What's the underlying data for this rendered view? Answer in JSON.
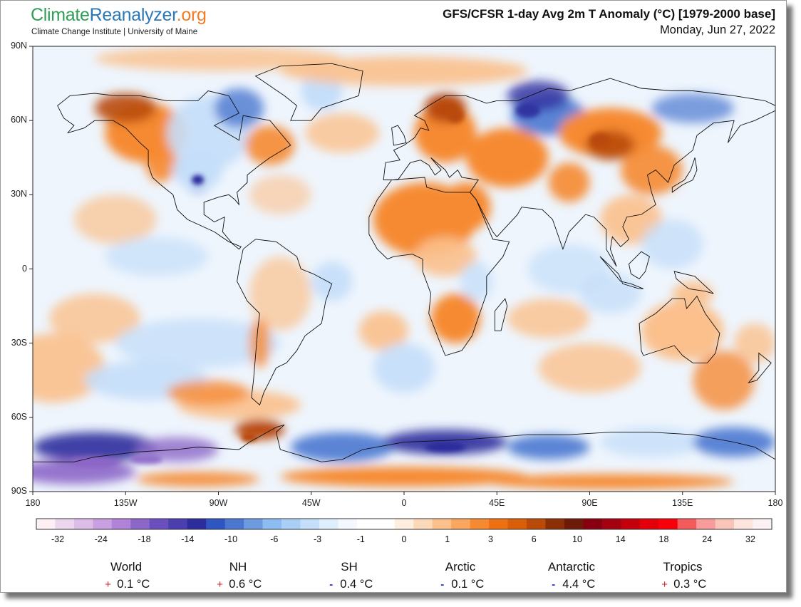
{
  "header": {
    "logo_part1": "Climate",
    "logo_part2": "Reanalyzer",
    "logo_part3": ".org",
    "subtitle": "Climate Change Institute | University of Maine",
    "title": "GFS/CFSR 1-day Avg 2m T Anomaly (°C) [1979-2000 base]",
    "date": "Monday, Jun 27, 2022"
  },
  "map": {
    "projection": "equirectangular",
    "lon_range": [
      -180,
      180
    ],
    "lat_range": [
      -90,
      90
    ],
    "lat_labels": [
      {
        "value": 90,
        "label": "90N"
      },
      {
        "value": 60,
        "label": "60N"
      },
      {
        "value": 30,
        "label": "30N"
      },
      {
        "value": 0,
        "label": "0"
      },
      {
        "value": -30,
        "label": "30S"
      },
      {
        "value": -60,
        "label": "60S"
      },
      {
        "value": -90,
        "label": "90S"
      }
    ],
    "lon_labels": [
      {
        "value": -180,
        "label": "180"
      },
      {
        "value": -135,
        "label": "135W"
      },
      {
        "value": -90,
        "label": "90W"
      },
      {
        "value": -45,
        "label": "45W"
      },
      {
        "value": 0,
        "label": "0"
      },
      {
        "value": 45,
        "label": "45E"
      },
      {
        "value": 90,
        "label": "90E"
      },
      {
        "value": 135,
        "label": "135E"
      },
      {
        "value": 180,
        "label": "180"
      }
    ]
  },
  "colorbar": {
    "colors": [
      "#fdf0f4",
      "#ecd6ee",
      "#dcbde8",
      "#c89fe0",
      "#b083d8",
      "#8c66c8",
      "#6b4fbf",
      "#4b3fb0",
      "#2c2c9c",
      "#2f55c0",
      "#4a78d0",
      "#6e9be0",
      "#8dbcf2",
      "#a9cff7",
      "#c5def9",
      "#dfeefc",
      "#f2f8fe",
      "#ffffff",
      "#ffffff",
      "#fdeee0",
      "#fcd9b8",
      "#fbc08c",
      "#f9a65f",
      "#f68a32",
      "#ef7012",
      "#d85e0a",
      "#b94a08",
      "#8c2f06",
      "#6e1a08",
      "#880010",
      "#a30010",
      "#c4000c",
      "#e2000a",
      "#f8000a",
      "#f45a5a",
      "#f79b9b",
      "#f8c5b8",
      "#fde4dc",
      "#fbf2f4"
    ],
    "labels": [
      "-32",
      "-24",
      "-18",
      "-14",
      "-10",
      "-6",
      "-3",
      "-1",
      "0",
      "1",
      "3",
      "6",
      "10",
      "14",
      "18",
      "24",
      "32"
    ]
  },
  "stats": [
    {
      "name": "World",
      "sign": "+",
      "value": "0.1 °C",
      "positive": true
    },
    {
      "name": "NH",
      "sign": "+",
      "value": "0.6 °C",
      "positive": true
    },
    {
      "name": "SH",
      "sign": "-",
      "value": "0.4 °C",
      "positive": false
    },
    {
      "name": "Arctic",
      "sign": "-",
      "value": "0.1 °C",
      "positive": false
    },
    {
      "name": "Antarctic",
      "sign": "-",
      "value": "4.4 °C",
      "positive": false
    },
    {
      "name": "Tropics",
      "sign": "+",
      "value": "0.3 °C",
      "positive": true
    }
  ],
  "colors": {
    "background_white": "#ffffff",
    "warm_light": "#fbc08c",
    "warm_mid": "#f68a32",
    "warm_dark": "#b94a08",
    "cool_light": "#c5def9",
    "cool_mid": "#4a78d0",
    "cool_dark": "#2c2c9c",
    "purple": "#8c66c8",
    "positive_sign": "#d62020",
    "negative_sign": "#2030c8"
  }
}
